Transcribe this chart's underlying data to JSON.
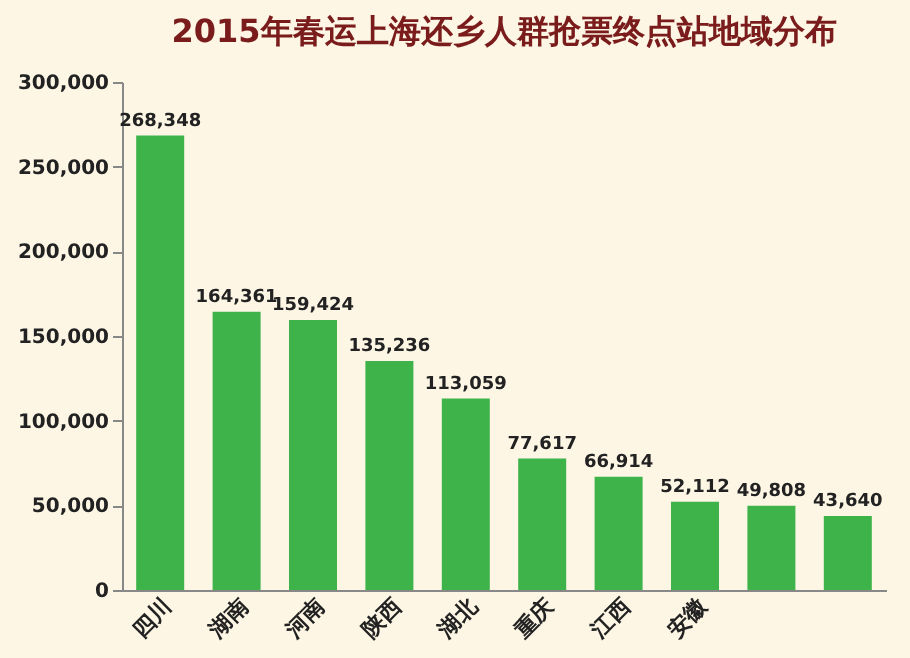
{
  "chart_data": {
    "type": "bar",
    "title": "2015年春运上海还乡人群抢票终点站地域分布",
    "categories": [
      "四川",
      "湖南",
      "河南",
      "陕西",
      "湖北",
      "重庆",
      "江西",
      "安徽",
      null,
      null
    ],
    "values": [
      268348,
      164361,
      159424,
      135236,
      113059,
      77617,
      66914,
      52112,
      49808,
      43640
    ],
    "value_labels": [
      "268,348",
      "164,361",
      "159,424",
      "135,236",
      "113,059",
      "77,617",
      "66,914",
      "52,112",
      "49,808",
      "43,640"
    ],
    "color": "#3db34a",
    "ylim": [
      0,
      300000
    ],
    "yticks": [
      0,
      {
        "value": 50000,
        "label": "50,000"
      },
      {
        "value": 100000,
        "label": "100,000"
      },
      {
        "value": 150000,
        "label": "150,000"
      },
      {
        "value": 200000,
        "label": "200,000"
      },
      {
        "value": 250000,
        "label": "250,000"
      },
      {
        "value": 300000,
        "label": "300,000"
      }
    ],
    "grid": false
  }
}
